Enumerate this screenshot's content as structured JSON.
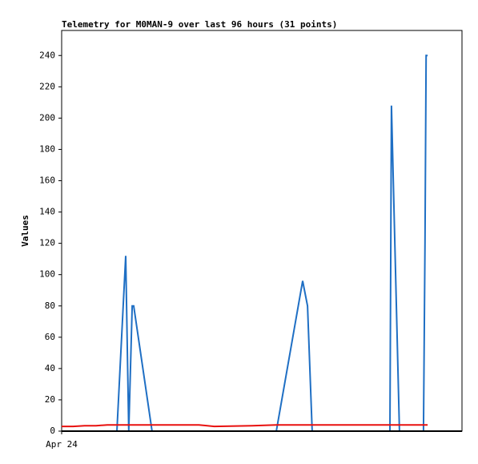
{
  "chart_data": {
    "type": "line",
    "title": "Telemetry for M0MAN-9 over last 96 hours (31 points)",
    "y_label": "Values",
    "x": [
      0,
      3,
      6,
      9,
      12,
      14.5,
      16.8,
      17.6,
      18.5,
      18.9,
      23.7,
      30,
      36,
      40,
      50,
      56.3,
      63.2,
      64.5,
      65.7,
      72,
      78,
      84,
      86.1,
      86.5,
      88.6,
      90,
      92,
      94.9,
      95.3,
      95.6,
      96
    ],
    "series": [
      {
        "color": "#1f6fc4",
        "values": [
          0,
          0,
          0,
          0,
          0,
          0,
          112,
          0,
          80,
          80,
          0,
          0,
          0,
          0,
          0,
          0,
          96,
          80,
          0,
          0,
          0,
          0,
          0,
          208,
          0,
          0,
          0,
          0,
          120,
          240,
          240
        ]
      },
      {
        "color": "#e8100e",
        "values": [
          3,
          3,
          3.5,
          3.5,
          4,
          4,
          4,
          4,
          4,
          4,
          4,
          4,
          4,
          3,
          3.5,
          4,
          4,
          4,
          4,
          4,
          4,
          4,
          4,
          4,
          4,
          4,
          4,
          4,
          4,
          4,
          4
        ]
      }
    ],
    "xlim": [
      0,
      105
    ],
    "xticks": [
      {
        "value": 0,
        "label": "Apr 24"
      }
    ],
    "ylim": [
      0,
      256
    ],
    "yticks": [
      0,
      20,
      40,
      60,
      80,
      100,
      120,
      140,
      160,
      180,
      200,
      220,
      240
    ]
  }
}
